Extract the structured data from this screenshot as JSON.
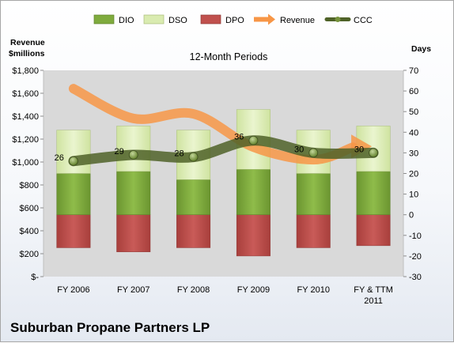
{
  "chart_data": {
    "type": "bar",
    "title": "12-Month Periods",
    "company": "Suburban Propane Partners LP",
    "y_left_label_line1": "Revenue",
    "y_left_label_line2": "$millions",
    "y_right_label": "Days",
    "categories": [
      "FY 2006",
      "FY 2007",
      "FY 2008",
      "FY 2009",
      "FY 2010",
      "FY & TTM 2011"
    ],
    "category_lines": [
      [
        "FY 2006"
      ],
      [
        "FY 2007"
      ],
      [
        "FY 2008"
      ],
      [
        "FY 2009"
      ],
      [
        "FY 2010"
      ],
      [
        "FY & TTM",
        "2011"
      ]
    ],
    "left_axis": {
      "min": 0,
      "max": 1800,
      "step": 200
    },
    "left_tick_labels": [
      "$-",
      "$200",
      "$400",
      "$600",
      "$800",
      "$1,000",
      "$1,200",
      "$1,400",
      "$1,600",
      "$1,800"
    ],
    "right_axis": {
      "min": -30,
      "max": 70,
      "step": 10
    },
    "right_tick_labels": [
      "-30",
      "-20",
      "-10",
      "0",
      "10",
      "20",
      "30",
      "40",
      "50",
      "60",
      "70"
    ],
    "legend_position": "top",
    "series": [
      {
        "name": "DIO",
        "axis": "right",
        "kind": "stacked-bar",
        "values": [
          20,
          21,
          17,
          22,
          20,
          21
        ]
      },
      {
        "name": "DSO",
        "axis": "right",
        "kind": "stacked-bar",
        "values": [
          21,
          22,
          24,
          29,
          21,
          22
        ]
      },
      {
        "name": "DPO",
        "axis": "right",
        "kind": "negative-bar",
        "values": [
          -16,
          -18,
          -16,
          -20,
          -16,
          -15
        ]
      },
      {
        "name": "Revenue",
        "axis": "left",
        "kind": "arrow-line",
        "values": [
          1640,
          1380,
          1420,
          1130,
          1020,
          1150
        ]
      },
      {
        "name": "CCC",
        "axis": "right",
        "kind": "line-markers",
        "values": [
          26,
          29,
          28,
          36,
          30,
          30
        ]
      }
    ],
    "ccc_labels": [
      "26",
      "29",
      "28",
      "36",
      "30",
      "30"
    ],
    "colors": {
      "dio": "#7fab3d",
      "dso": "#d9ebb0",
      "dpo": "#c0504d",
      "revenue": "#f79646",
      "ccc": "#4f6228",
      "ccc_marker": "#76923c",
      "plot_bg": "#d9d9d9"
    },
    "grid": false
  }
}
